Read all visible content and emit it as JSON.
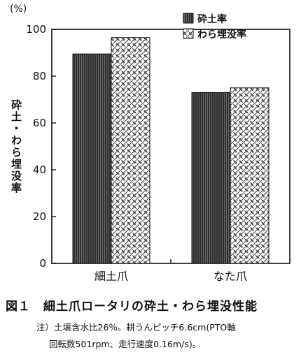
{
  "chart_data": {
    "type": "bar",
    "categories": [
      "細土爪",
      "なた爪"
    ],
    "series": [
      {
        "name": "砕土率",
        "values": [
          89.5,
          73
        ],
        "pattern": "dark-vertical-lines",
        "color": "#2a2a2a"
      },
      {
        "name": "わら埋没率",
        "values": [
          96.5,
          75
        ],
        "pattern": "diagonal-crosshatch",
        "color": "#ffffff"
      }
    ],
    "ylabel": "砕土・わら埋没率",
    "y_unit": "(%)",
    "yticks": [
      0,
      20,
      40,
      60,
      80,
      100
    ],
    "ylim": [
      0,
      100
    ],
    "grid": false,
    "legend_position": "top-right"
  },
  "caption": {
    "title": "図１　細土爪ロータリの砕土・わら埋没性能",
    "note_line1": "注）土壌含水比26％。耕うんピッチ6.6cm(PTO軸",
    "note_line2": "回転数501rpm、走行速度0.16m/s)。"
  }
}
